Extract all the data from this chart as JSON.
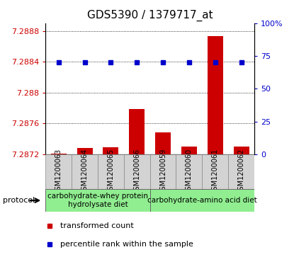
{
  "title": "GDS5390 / 1379717_at",
  "samples": [
    "GSM1200063",
    "GSM1200064",
    "GSM1200065",
    "GSM1200066",
    "GSM1200059",
    "GSM1200060",
    "GSM1200061",
    "GSM1200062"
  ],
  "red_values": [
    7.28721,
    7.28728,
    7.28729,
    7.28779,
    7.28748,
    7.2873,
    7.28873,
    7.2873
  ],
  "blue_values": [
    70,
    70,
    70,
    70,
    70,
    70,
    70,
    70
  ],
  "ylim_left": [
    7.2872,
    7.2889
  ],
  "ylim_right": [
    0,
    100
  ],
  "yticks_left": [
    7.2872,
    7.2876,
    7.288,
    7.2884,
    7.2888
  ],
  "yticks_right": [
    0,
    25,
    50,
    75,
    100
  ],
  "ytick_labels_left": [
    "7.2872",
    "7.2876",
    "7.288",
    "7.2884",
    "7.2888"
  ],
  "ytick_labels_right": [
    "0",
    "25",
    "50",
    "75",
    "100%"
  ],
  "group1_label": "carbohydrate-whey protein\nhydrolysate diet",
  "group2_label": "carbohydrate-amino acid diet",
  "group_bg_color": "#90ee90",
  "protocol_label": "protocol",
  "bar_color": "#cc0000",
  "dot_color": "#0000cc",
  "baseline": 7.2872,
  "legend_bar_label": "transformed count",
  "legend_dot_label": "percentile rank within the sample",
  "title_fontsize": 11,
  "tick_fontsize": 8,
  "sample_fontsize": 7,
  "group_label_fontsize": 7.5,
  "legend_fontsize": 8,
  "plot_bg_color": "#ffffff",
  "sample_bg_color": "#d3d3d3"
}
